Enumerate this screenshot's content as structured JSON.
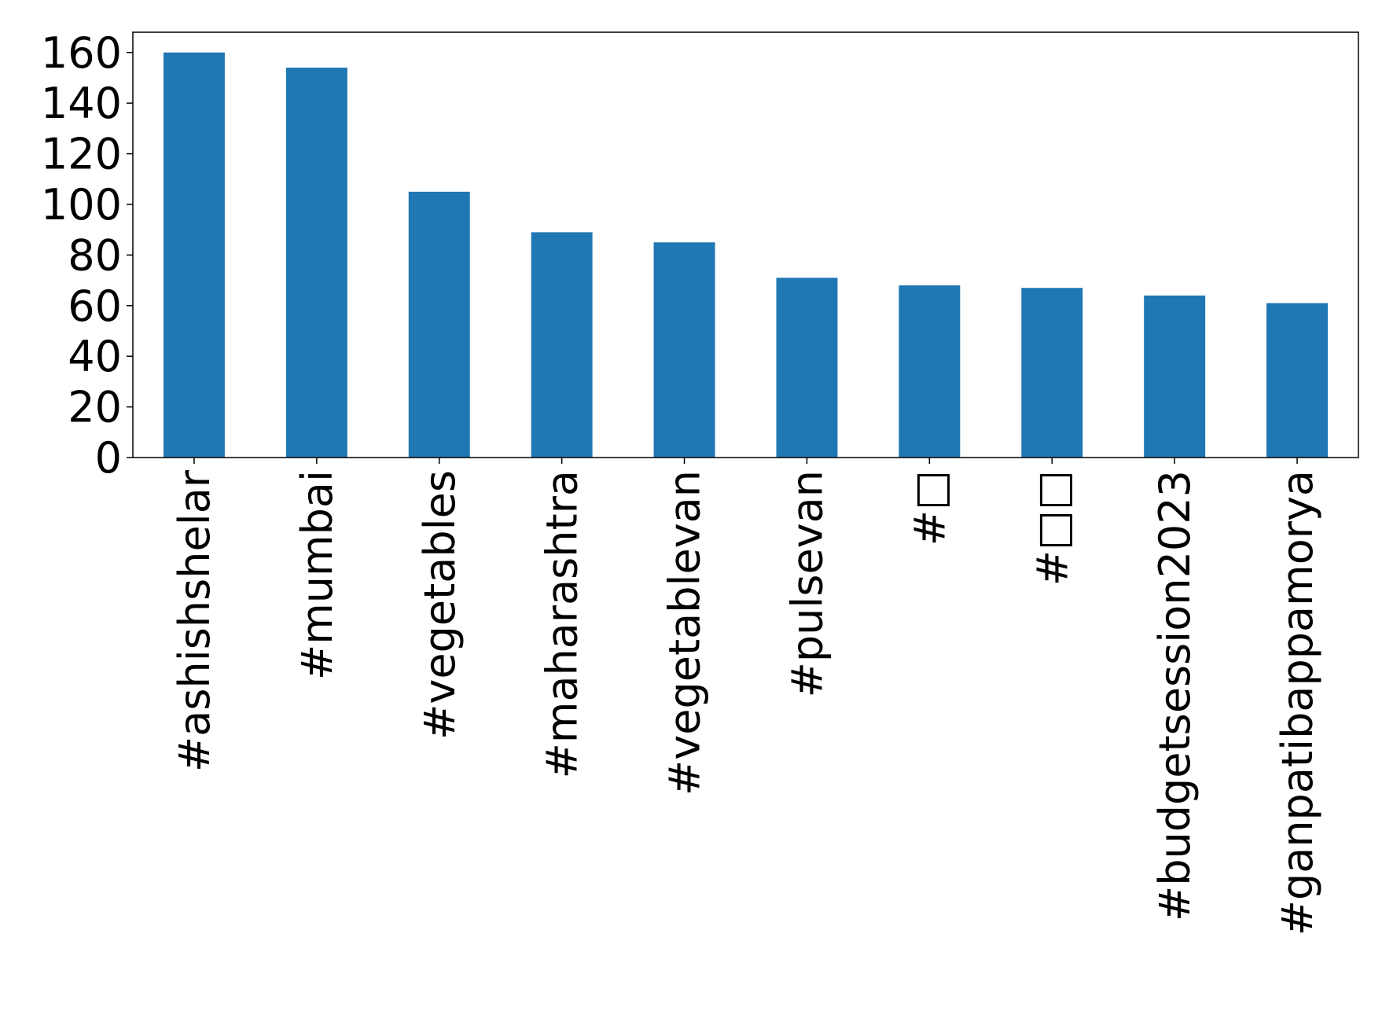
{
  "chart_data": {
    "type": "bar",
    "categories": [
      "#ashishshelar",
      "#mumbai",
      "#vegetables",
      "#maharashtra",
      "#vegetablevan",
      "#pulsevan",
      "#□",
      "#□□",
      "#budgetsession2023",
      "#ganpatibappamorya"
    ],
    "values": [
      160,
      154,
      105,
      89,
      85,
      71,
      68,
      67,
      64,
      61
    ],
    "color": "#1f77b4",
    "ylim": [
      0,
      168
    ],
    "yticks": [
      0,
      20,
      40,
      60,
      80,
      100,
      120,
      140,
      160
    ],
    "grid": false
  }
}
